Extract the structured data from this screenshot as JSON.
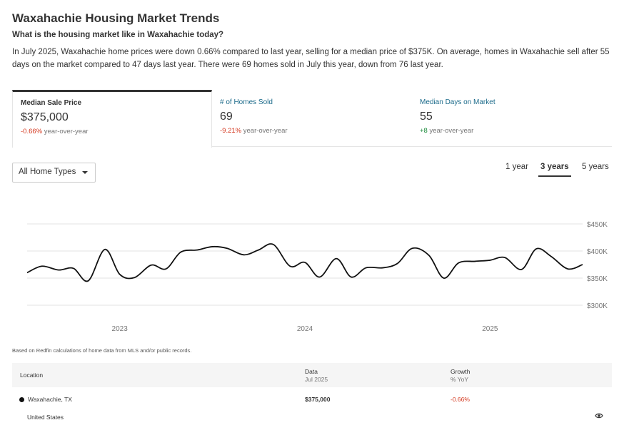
{
  "page": {
    "title": "Waxahachie Housing Market Trends",
    "subtitle": "What is the housing market like in Waxahachie today?",
    "summary": "In July 2025, Waxahachie home prices were down 0.66% compared to last year, selling for a median price of $375K. On average, homes in Waxahachie sell after 55 days on the market compared to 47 days last year. There were 69 homes sold in July this year, down from 76 last year."
  },
  "tabs": [
    {
      "label": "Median Sale Price",
      "value": "$375,000",
      "change": "-0.66%",
      "change_suffix": " year-over-year",
      "active": true
    },
    {
      "label": "# of Homes Sold",
      "value": "69",
      "change": "-9.21%",
      "change_suffix": " year-over-year",
      "active": false
    },
    {
      "label": "Median Days on Market",
      "value": "55",
      "change": "+8",
      "change_suffix": " year-over-year",
      "active": false
    }
  ],
  "filter": {
    "selected": "All Home Types"
  },
  "ranges": {
    "r1": "1 year",
    "r3": "3 years",
    "r5": "5 years",
    "selected": "3 years"
  },
  "chart_data": {
    "type": "line",
    "title": "",
    "xlabel": "",
    "ylabel": "",
    "ylim": [
      300000,
      450000
    ],
    "y_ticks": [
      "$450K",
      "$400K",
      "$350K",
      "$300K"
    ],
    "y_tick_values": [
      450000,
      400000,
      350000,
      300000
    ],
    "x_ticks": [
      "2023",
      "2024",
      "2025"
    ],
    "x_tick_values": [
      2023,
      2024,
      2025
    ],
    "grid": true,
    "line_color": "#111111",
    "series": [
      {
        "x": [
          2022.5,
          2022.58,
          2022.67,
          2022.75,
          2022.83,
          2022.92,
          2023.0,
          2023.08,
          2023.17,
          2023.25,
          2023.33,
          2023.42,
          2023.5,
          2023.58,
          2023.67,
          2023.75,
          2023.83,
          2023.92,
          2024.0,
          2024.08,
          2024.17,
          2024.25,
          2024.33,
          2024.42,
          2024.5,
          2024.58,
          2024.67,
          2024.75,
          2024.83,
          2024.92,
          2025.0,
          2025.08,
          2025.17,
          2025.25,
          2025.33,
          2025.42,
          2025.5
        ],
        "values": [
          360000,
          372000,
          365000,
          368000,
          345000,
          403000,
          357000,
          351000,
          374000,
          367000,
          398000,
          402000,
          408000,
          405000,
          393000,
          402000,
          412000,
          372000,
          379000,
          352000,
          386000,
          352000,
          369000,
          369000,
          377000,
          405000,
          392000,
          350000,
          378000,
          381000,
          383000,
          388000,
          366000,
          404000,
          390000,
          367000,
          375000
        ]
      }
    ]
  },
  "footnote": "Based on Redfin calculations of home data from MLS and/or public records.",
  "table": {
    "headers": {
      "location": "Location",
      "data": "Data",
      "data_sub": "Jul 2025",
      "growth": "Growth",
      "growth_sub": "% YoY"
    },
    "rows": [
      {
        "location": "Waxahachie, TX",
        "data": "$375,000",
        "growth": "-0.66%"
      },
      {
        "location": "United States",
        "data": "",
        "growth": ""
      }
    ]
  },
  "icons": {
    "dot": "series-dot-icon",
    "eye": "eye-icon"
  }
}
